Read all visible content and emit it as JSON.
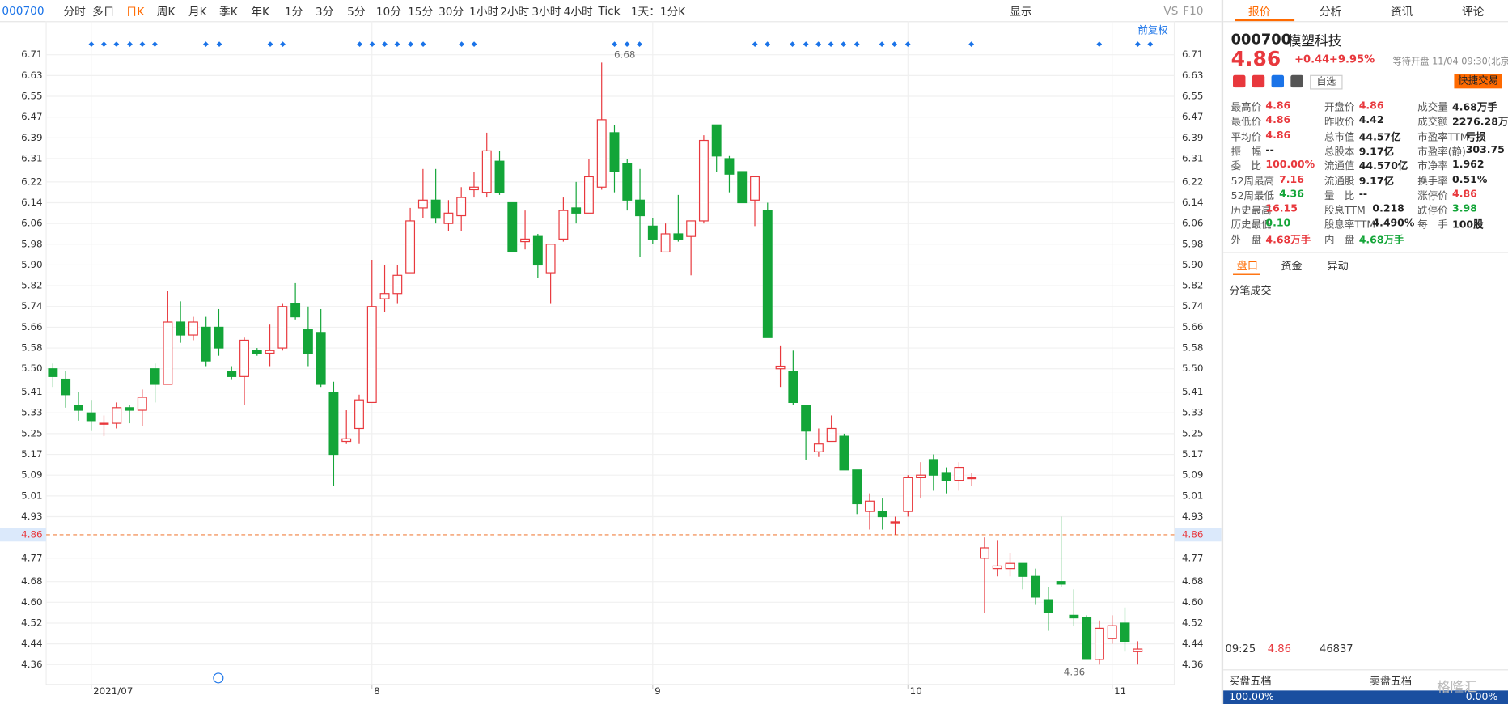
{
  "toolbar": {
    "code": "000700",
    "periods": [
      "分时",
      "多日",
      "日K",
      "周K",
      "月K",
      "季K",
      "年K",
      "1分",
      "3分",
      "5分",
      "10分",
      "15分",
      "30分",
      "1小时",
      "2小时",
      "3小时",
      "4小时",
      "Tick"
    ],
    "active": "日K",
    "period_select": "1天：1分K",
    "display": "显示",
    "vs": "VS",
    "f10": "F10"
  },
  "chart_data": {
    "type": "candlestick",
    "adjust": "前复权",
    "categories": [
      null,
      null,
      null,
      "2021/07",
      null,
      null,
      null,
      null,
      null,
      null,
      null,
      null,
      null,
      null,
      null,
      null,
      null,
      null,
      null,
      null,
      null,
      null,
      null,
      null,
      null,
      "8",
      null,
      null,
      null,
      null,
      null,
      null,
      null,
      null,
      null,
      null,
      null,
      null,
      null,
      null,
      null,
      null,
      null,
      null,
      null,
      null,
      null,
      "9",
      null,
      null,
      null,
      null,
      null,
      null,
      null,
      null,
      null,
      null,
      null,
      null,
      null,
      null,
      null,
      null,
      null,
      null,
      null,
      "10",
      null,
      null,
      null,
      null,
      null,
      null,
      null,
      null,
      null,
      null,
      null,
      null,
      null,
      null,
      null,
      "11",
      null,
      null
    ],
    "open": [
      5.5,
      5.46,
      5.36,
      5.33,
      5.29,
      5.29,
      5.35,
      5.34,
      5.5,
      5.44,
      5.68,
      5.63,
      5.66,
      5.66,
      5.49,
      5.47,
      5.57,
      5.56,
      5.58,
      5.75,
      5.65,
      5.64,
      5.41,
      5.22,
      5.27,
      5.37,
      5.77,
      5.79,
      5.87,
      6.12,
      6.15,
      6.06,
      6.09,
      6.19,
      6.18,
      6.3,
      6.14,
      5.99,
      6.01,
      5.87,
      6.0,
      6.12,
      6.1,
      6.2,
      6.41,
      6.29,
      6.15,
      6.05,
      5.95,
      6.02,
      6.01,
      6.07,
      6.44,
      6.31,
      6.26,
      6.15,
      6.11,
      5.5,
      5.49,
      5.36,
      5.18,
      5.22,
      5.24,
      5.11,
      4.95,
      4.95,
      4.91,
      4.95,
      5.08,
      5.15,
      5.1,
      5.07,
      5.08,
      4.77,
      4.73,
      4.73,
      4.75,
      4.7,
      4.61,
      4.68,
      4.55,
      4.54,
      4.38,
      4.46,
      4.52,
      4.41
    ],
    "high": [
      5.52,
      5.49,
      5.41,
      5.38,
      5.32,
      5.37,
      5.36,
      5.42,
      5.52,
      5.8,
      5.76,
      5.7,
      5.7,
      5.73,
      5.51,
      5.62,
      5.58,
      5.67,
      5.75,
      5.83,
      5.74,
      5.73,
      5.45,
      5.34,
      5.4,
      5.92,
      5.9,
      5.9,
      6.12,
      6.27,
      6.27,
      6.15,
      6.2,
      6.26,
      6.41,
      6.34,
      6.14,
      6.11,
      6.02,
      5.98,
      6.16,
      6.22,
      6.31,
      6.68,
      6.44,
      6.31,
      6.27,
      6.08,
      6.06,
      6.17,
      6.07,
      6.4,
      6.44,
      6.32,
      6.26,
      6.24,
      6.14,
      5.59,
      5.57,
      5.36,
      5.27,
      5.32,
      5.25,
      5.11,
      5.02,
      5.0,
      4.93,
      5.09,
      5.14,
      5.17,
      5.12,
      5.14,
      5.1,
      4.85,
      4.84,
      4.79,
      4.75,
      4.73,
      4.66,
      4.93,
      4.65,
      4.55,
      4.53,
      4.55,
      4.58,
      4.45
    ],
    "low": [
      5.43,
      5.35,
      5.3,
      5.26,
      5.24,
      5.27,
      5.29,
      5.28,
      5.37,
      5.44,
      5.6,
      5.61,
      5.51,
      5.55,
      5.46,
      5.36,
      5.55,
      5.51,
      5.57,
      5.69,
      5.51,
      5.43,
      5.05,
      5.21,
      5.21,
      5.37,
      5.72,
      5.75,
      5.87,
      6.08,
      6.06,
      6.03,
      6.03,
      6.16,
      6.16,
      6.17,
      5.95,
      5.96,
      5.85,
      5.75,
      5.99,
      6.06,
      6.1,
      6.19,
      6.18,
      6.11,
      5.93,
      5.98,
      5.95,
      5.99,
      5.86,
      6.06,
      6.26,
      6.18,
      6.14,
      6.05,
      5.62,
      5.43,
      5.36,
      5.15,
      5.16,
      5.22,
      5.11,
      4.94,
      4.88,
      4.88,
      4.86,
      4.93,
      5.0,
      5.03,
      5.02,
      5.03,
      5.05,
      4.56,
      4.7,
      4.7,
      4.65,
      4.59,
      4.49,
      4.66,
      4.51,
      4.38,
      4.36,
      4.44,
      4.41,
      4.36
    ],
    "close": [
      5.47,
      5.4,
      5.34,
      5.3,
      5.29,
      5.35,
      5.34,
      5.39,
      5.44,
      5.68,
      5.63,
      5.68,
      5.53,
      5.58,
      5.47,
      5.61,
      5.56,
      5.57,
      5.74,
      5.7,
      5.56,
      5.44,
      5.17,
      5.23,
      5.38,
      5.74,
      5.79,
      5.86,
      6.07,
      6.15,
      6.08,
      6.1,
      6.16,
      6.2,
      6.34,
      6.18,
      5.95,
      6.0,
      5.9,
      5.98,
      6.11,
      6.1,
      6.24,
      6.46,
      6.26,
      6.15,
      6.09,
      6.0,
      6.02,
      6.0,
      6.07,
      6.38,
      6.32,
      6.25,
      6.14,
      6.24,
      5.62,
      5.51,
      5.37,
      5.26,
      5.21,
      5.27,
      5.11,
      4.98,
      4.99,
      4.93,
      4.91,
      5.08,
      5.09,
      5.09,
      5.07,
      5.12,
      5.08,
      4.81,
      4.74,
      4.75,
      4.7,
      4.62,
      4.56,
      4.67,
      4.54,
      4.38,
      4.5,
      4.51,
      4.45,
      4.42
    ],
    "up_color": "#e8383d",
    "down_color": "#13a538",
    "last_price": 4.86,
    "ylim": [
      4.28,
      6.83
    ],
    "yticks": [
      6.71,
      6.63,
      6.55,
      6.47,
      6.39,
      6.31,
      6.22,
      6.14,
      6.06,
      5.98,
      {
        "value": 5.9,
        "label": "5.90"
      },
      5.82,
      5.74,
      5.66,
      5.58,
      {
        "value": 5.5,
        "label": "5.50"
      },
      5.41,
      5.33,
      5.25,
      5.17,
      5.09,
      5.01,
      4.93,
      4.77,
      4.68,
      {
        "value": 4.6,
        "label": "4.60"
      },
      4.52,
      4.44,
      4.36
    ],
    "grid": true
  },
  "quote": {
    "tabs": [
      "报价",
      "分析",
      "资讯",
      "评论"
    ],
    "code": "000700",
    "name": "模塑科技",
    "price": 4.86,
    "change": "+0.44",
    "change_pct": "+9.95%",
    "status": "等待开盘 11/04 09:30(北京)",
    "watch": "自选",
    "trade": "快捷交易",
    "stats": [
      [
        {
          "label": "最高价",
          "value": "4.86",
          "color": "#e8383d"
        },
        {
          "label": "开盘价",
          "value": "4.86",
          "color": "#e8383d"
        },
        {
          "label": "成交量",
          "value": "4.68万手",
          "color": "#222222"
        }
      ],
      [
        {
          "label": "最低价",
          "value": "4.86",
          "color": "#e8383d"
        },
        {
          "label": "昨收价",
          "value": "4.42",
          "color": "#222222"
        },
        {
          "label": "成交额",
          "value": "2276.28万",
          "color": "#222222"
        }
      ],
      [
        {
          "label": "平均价",
          "value": "4.86",
          "color": "#e8383d"
        },
        {
          "label": "总市值",
          "value": "44.57亿",
          "color": "#222222"
        },
        {
          "label": "市盈率TTM",
          "value": "亏损",
          "color": "#222222"
        }
      ],
      [
        {
          "label": "振　幅",
          "value": "--",
          "color": "#222222"
        },
        {
          "label": "总股本",
          "value": "9.17亿",
          "color": "#222222"
        },
        {
          "label": "市盈率(静)",
          "value": "303.75",
          "color": "#222222"
        }
      ],
      [
        {
          "label": "委　比",
          "value": "100.00%",
          "color": "#e8383d"
        },
        {
          "label": "流通值",
          "value": "44.570亿",
          "color": "#222222"
        },
        {
          "label": "市净率",
          "value": "1.962",
          "color": "#222222"
        }
      ],
      [
        {
          "label": "52周最高",
          "value": "7.16",
          "color": "#e8383d"
        },
        {
          "label": "流通股",
          "value": "9.17亿",
          "color": "#222222"
        },
        {
          "label": "换手率",
          "value": "0.51%",
          "color": "#222222"
        }
      ],
      [
        {
          "label": "52周最低",
          "value": "4.36",
          "color": "#13a538"
        },
        {
          "label": "量　比",
          "value": "--",
          "color": "#222222"
        },
        {
          "label": "涨停价",
          "value": "4.86",
          "color": "#e8383d"
        }
      ],
      [
        {
          "label": "历史最高",
          "value": "16.15",
          "color": "#e8383d"
        },
        {
          "label": "股息TTM",
          "value": "0.218",
          "color": "#222222"
        },
        {
          "label": "跌停价",
          "value": "3.98",
          "color": "#13a538"
        }
      ],
      [
        {
          "label": "历史最低",
          "value": "0.10",
          "color": "#13a538"
        },
        {
          "label": "股息率TTM",
          "value": "4.490%",
          "color": "#222222"
        },
        {
          "label": "每　手",
          "value": "100股",
          "color": "#222222"
        }
      ],
      [
        {
          "label": "外　盘",
          "value": "4.68万手",
          "color": "#e8383d"
        },
        {
          "label": "内　盘",
          "value": "4.68万手",
          "color": "#13a538"
        }
      ]
    ]
  },
  "panel": {
    "tabs": [
      "盘口",
      "资金",
      "异动"
    ],
    "ticks_title": "分笔成交",
    "tick": {
      "time": "09:25",
      "price": 4.86,
      "volume": 46837
    },
    "bid_title": "买盘五档",
    "ask_title": "卖盘五档",
    "bid_pct": "100.00%",
    "ask_pct": "0.00%"
  },
  "watermark": "格隆汇"
}
